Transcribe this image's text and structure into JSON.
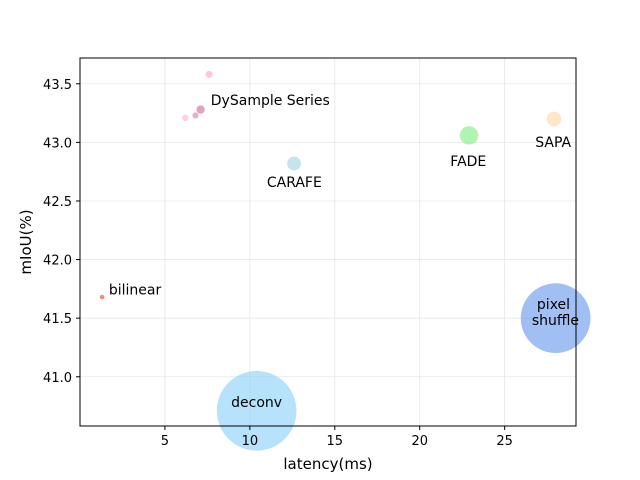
{
  "chart_data": {
    "type": "scatter",
    "title": "",
    "xlabel": "latency(ms)",
    "ylabel": "mIoU(%)",
    "xlim": [
      0.0,
      29.2
    ],
    "ylim": [
      40.58,
      43.72
    ],
    "xticks": [
      5,
      10,
      15,
      20,
      25
    ],
    "yticks": [
      41.0,
      41.5,
      42.0,
      42.5,
      43.0,
      43.5
    ],
    "ytick_labels": [
      "41.0",
      "41.5",
      "42.0",
      "42.5",
      "43.0",
      "43.5"
    ],
    "grid": true,
    "points": [
      {
        "name": "bilinear",
        "label": "bilinear",
        "x": 1.3,
        "y": 41.68,
        "size": 1,
        "color": "#f08070",
        "opacity": 0.9
      },
      {
        "name": "deconv",
        "label": "deconv",
        "x": 10.4,
        "y": 40.71,
        "size": 300,
        "color": "#87cefa",
        "opacity": 0.6
      },
      {
        "name": "pixel shuffle",
        "label": "pixel\nshuffle",
        "x": 28.0,
        "y": 41.5,
        "size": 230,
        "color": "#6495ed",
        "opacity": 0.6
      },
      {
        "name": "CARAFE",
        "label": "CARAFE",
        "x": 12.6,
        "y": 42.82,
        "size": 9,
        "color": "#add8e6",
        "opacity": 0.7
      },
      {
        "name": "FADE",
        "label": "FADE",
        "x": 22.9,
        "y": 43.06,
        "size": 16,
        "color": "#90ee90",
        "opacity": 0.7
      },
      {
        "name": "SAPA",
        "label": "SAPA",
        "x": 27.9,
        "y": 43.2,
        "size": 10,
        "color": "#ffdead",
        "opacity": 0.7
      },
      {
        "name": "DySample 1",
        "label": "",
        "x": 7.6,
        "y": 43.58,
        "size": 2.4,
        "color": "#f4a6b5",
        "opacity": 0.6
      },
      {
        "name": "DySample 2",
        "label": "",
        "x": 7.1,
        "y": 43.28,
        "size": 3.3,
        "color": "#cc6699",
        "opacity": 0.6
      },
      {
        "name": "DySample 3",
        "label": "",
        "x": 6.8,
        "y": 43.23,
        "size": 1.8,
        "color": "#e07aa8",
        "opacity": 0.6
      },
      {
        "name": "DySample 4",
        "label": "",
        "x": 6.2,
        "y": 43.21,
        "size": 2.0,
        "color": "#f7b6c8",
        "opacity": 0.6
      }
    ],
    "annotations": [
      {
        "text": "DySample Series",
        "x": 7.7,
        "y": 43.32
      },
      {
        "text": "bilinear",
        "x": 1.7,
        "y": 41.7
      },
      {
        "text": "CARAFE",
        "x": 11.0,
        "y": 42.62
      },
      {
        "text": "FADE",
        "x": 21.8,
        "y": 42.8
      },
      {
        "text": "SAPA",
        "x": 26.8,
        "y": 42.96
      },
      {
        "text": "pixel",
        "x": 26.9,
        "y": 41.58
      },
      {
        "text": "shuffle",
        "x": 26.6,
        "y": 41.44
      },
      {
        "text": "deconv",
        "x": 8.9,
        "y": 40.74
      }
    ]
  }
}
